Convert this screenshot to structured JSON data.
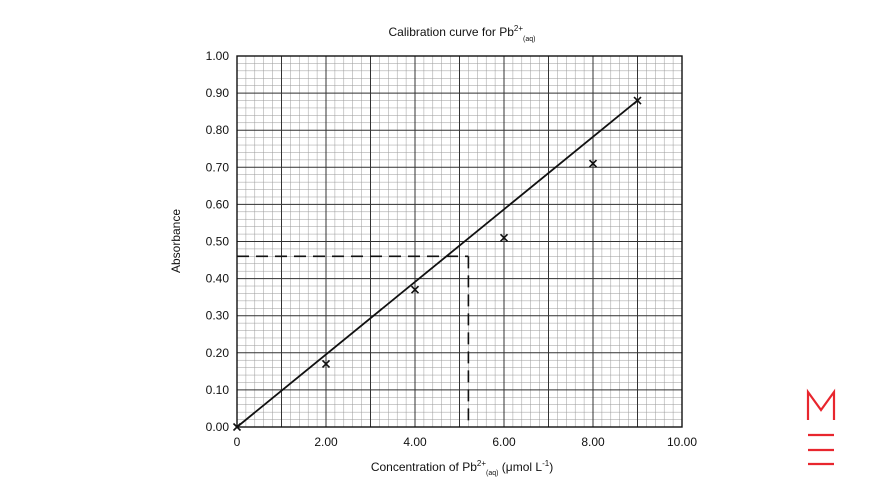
{
  "chart_data": {
    "type": "scatter",
    "title": "Calibration curve for Pb²⁺₍aq₎",
    "title_parts": {
      "main": "Calibration curve for Pb",
      "sup": "2+",
      "sub": "(aq)"
    },
    "xlabel": "Concentration of Pb²⁺₍aq₎ (μmol L⁻¹)",
    "xlabel_parts": {
      "main": "Concentration of Pb",
      "sup": "2+",
      "sub": "(aq)",
      "unit": " (μmol L",
      "unit_sup": "-1",
      "close": ")"
    },
    "ylabel": "Absorbance",
    "xlim": [
      0,
      10
    ],
    "ylim": [
      0,
      1
    ],
    "x_ticks": [
      0,
      2,
      4,
      6,
      8,
      10
    ],
    "x_tick_labels": [
      "0",
      "2.00",
      "4.00",
      "6.00",
      "8.00",
      "10.00"
    ],
    "y_ticks": [
      0,
      0.1,
      0.2,
      0.3,
      0.4,
      0.5,
      0.6,
      0.7,
      0.8,
      0.9,
      1.0
    ],
    "y_tick_labels": [
      "0.00",
      "0.10",
      "0.20",
      "0.30",
      "0.40",
      "0.50",
      "0.60",
      "0.70",
      "0.80",
      "0.90",
      "1.00"
    ],
    "grid": true,
    "grid_major_x_step": 1,
    "grid_major_y_step": 0.1,
    "grid_minor_x_step": 0.2,
    "grid_minor_y_step": 0.02,
    "series": [
      {
        "marker": "x",
        "points": [
          {
            "x": 0,
            "y": 0.0
          },
          {
            "x": 2,
            "y": 0.17
          },
          {
            "x": 4,
            "y": 0.37
          },
          {
            "x": 6,
            "y": 0.51
          },
          {
            "x": 8,
            "y": 0.71
          },
          {
            "x": 9,
            "y": 0.88
          }
        ]
      }
    ],
    "fit_line": {
      "x1": 0,
      "y1": 0.0,
      "x2": 9,
      "y2": 0.88
    },
    "interpolation": {
      "x": 5.2,
      "y": 0.46,
      "style": "dashed"
    },
    "colors": {
      "line": "#111111",
      "grid_major": "#333333",
      "grid_minor": "#9a9a9a"
    }
  },
  "logo": {
    "name": "brand-logo",
    "color": "#e8262e"
  }
}
